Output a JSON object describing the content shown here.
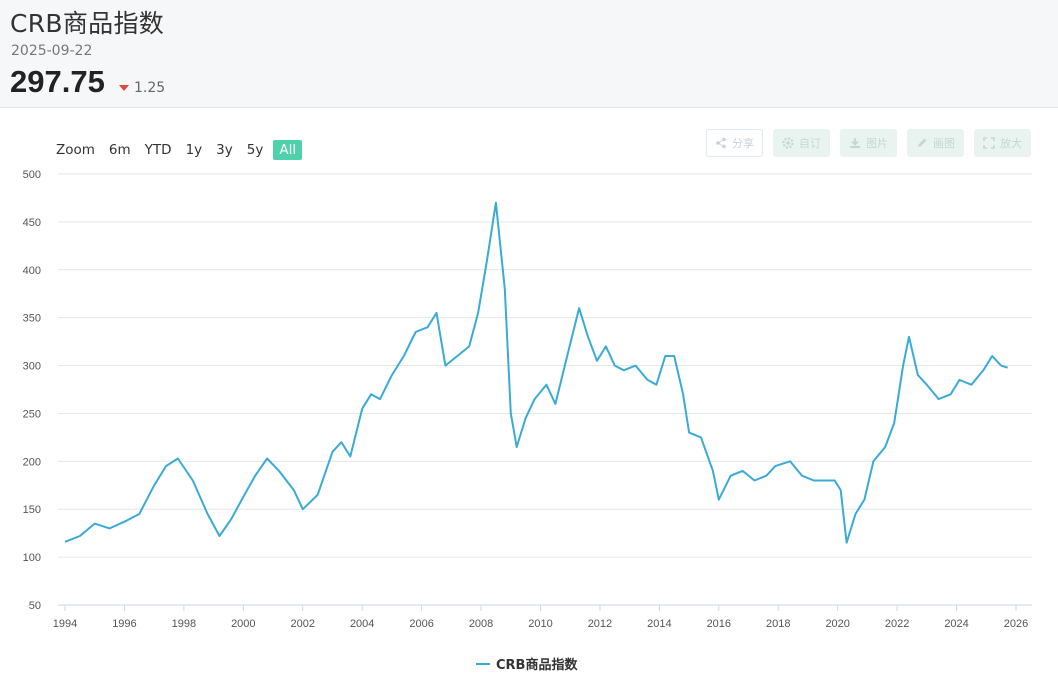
{
  "header": {
    "title": "CRB商品指数",
    "date": "2025-09-22",
    "price": "297.75",
    "change": "1.25"
  },
  "zoom": {
    "label": "Zoom",
    "buttons": [
      "6m",
      "YTD",
      "1y",
      "3y",
      "5y",
      "All"
    ],
    "active": "All"
  },
  "tools": [
    {
      "icon": "share-icon",
      "label": "分享"
    },
    {
      "icon": "gear-icon",
      "label": "自订"
    },
    {
      "icon": "download-icon",
      "label": "图片"
    },
    {
      "icon": "pencil-icon",
      "label": "画图"
    },
    {
      "icon": "expand-icon",
      "label": "放大"
    }
  ],
  "colors": {
    "line": "#3aaad6",
    "accent": "#4fd1ab",
    "down": "#e6453b"
  },
  "chart_data": {
    "type": "line",
    "title": "",
    "xlabel": "",
    "ylabel": "",
    "ylim": [
      50,
      500
    ],
    "yticks": [
      50,
      100,
      150,
      200,
      250,
      300,
      350,
      400,
      450,
      500
    ],
    "xlim": [
      1994,
      2026.4
    ],
    "xticks": [
      "1994",
      "1996",
      "1998",
      "2000",
      "2002",
      "2004",
      "2006",
      "2008",
      "2010",
      "2012",
      "2014",
      "2016",
      "2018",
      "2020",
      "2022",
      "2024",
      "2026"
    ],
    "grid": true,
    "legend": "bottom-center",
    "series": [
      {
        "name": "CRB商品指数",
        "x": [
          1994.0,
          1994.5,
          1995.0,
          1995.5,
          1996.0,
          1996.5,
          1997.0,
          1997.4,
          1997.8,
          1998.3,
          1998.8,
          1999.2,
          1999.6,
          2000.0,
          2000.4,
          2000.8,
          2001.2,
          2001.7,
          2002.0,
          2002.5,
          2003.0,
          2003.3,
          2003.6,
          2004.0,
          2004.3,
          2004.6,
          2005.0,
          2005.4,
          2005.8,
          2006.2,
          2006.5,
          2006.8,
          2007.2,
          2007.6,
          2007.9,
          2008.2,
          2008.5,
          2008.8,
          2009.0,
          2009.2,
          2009.5,
          2009.8,
          2010.2,
          2010.5,
          2010.9,
          2011.3,
          2011.6,
          2011.9,
          2012.2,
          2012.5,
          2012.8,
          2013.2,
          2013.6,
          2013.9,
          2014.2,
          2014.5,
          2014.8,
          2015.0,
          2015.4,
          2015.8,
          2016.0,
          2016.4,
          2016.8,
          2017.2,
          2017.6,
          2017.9,
          2018.4,
          2018.8,
          2019.2,
          2019.6,
          2019.9,
          2020.1,
          2020.3,
          2020.6,
          2020.9,
          2021.2,
          2021.6,
          2021.9,
          2022.2,
          2022.4,
          2022.7,
          2023.0,
          2023.4,
          2023.8,
          2024.1,
          2024.5,
          2024.9,
          2025.2,
          2025.5,
          2025.72
        ],
        "values": [
          116,
          122,
          135,
          130,
          137,
          145,
          175,
          195,
          203,
          180,
          145,
          122,
          140,
          163,
          185,
          203,
          190,
          170,
          150,
          165,
          210,
          220,
          205,
          255,
          270,
          265,
          290,
          310,
          335,
          340,
          355,
          300,
          310,
          320,
          355,
          410,
          470,
          380,
          250,
          215,
          245,
          265,
          280,
          260,
          310,
          360,
          330,
          305,
          320,
          300,
          295,
          300,
          285,
          280,
          310,
          310,
          270,
          230,
          225,
          190,
          160,
          185,
          190,
          180,
          185,
          195,
          200,
          185,
          180,
          180,
          180,
          170,
          115,
          145,
          160,
          200,
          215,
          240,
          300,
          330,
          290,
          280,
          265,
          270,
          285,
          280,
          295,
          310,
          300,
          297.75
        ]
      }
    ]
  }
}
